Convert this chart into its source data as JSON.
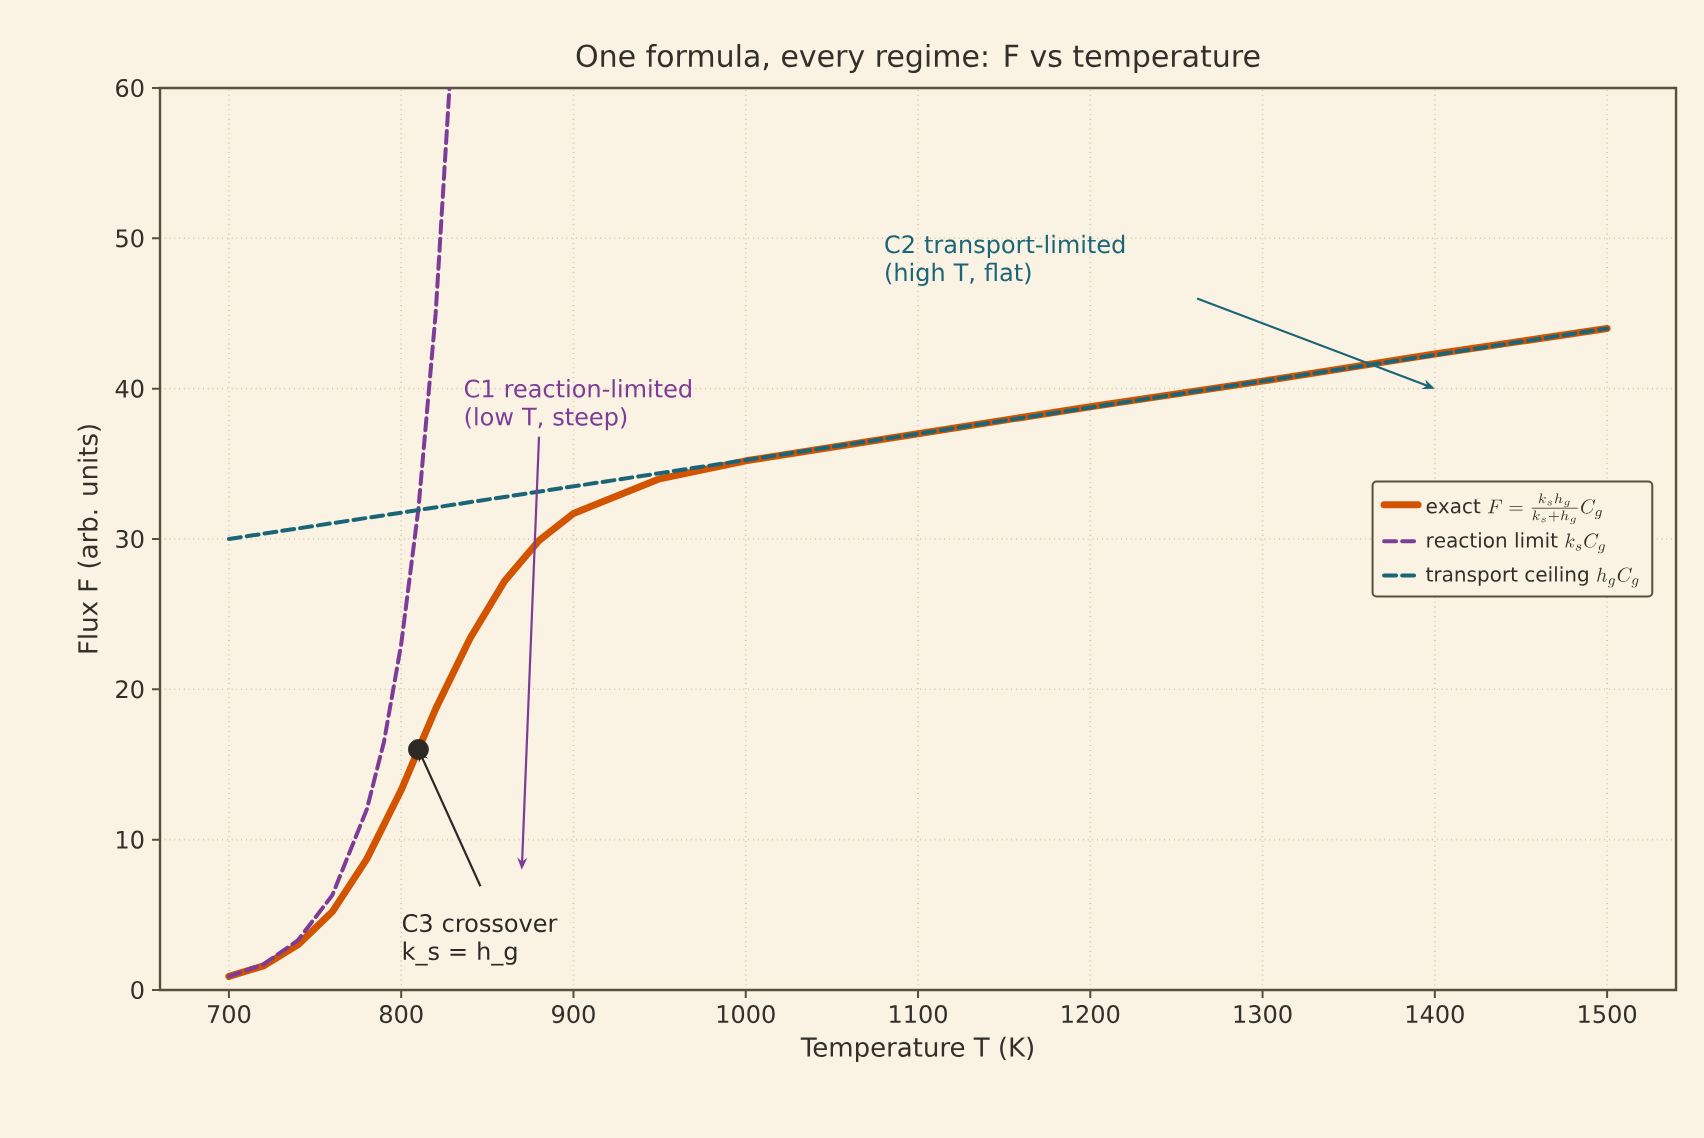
{
  "chart_data": {
    "type": "line",
    "title": "One formula, every regime: F vs temperature",
    "xlabel": "Temperature  T  (K)",
    "ylabel": "Flux  F  (arb. units)",
    "xlim": [
      660,
      1540
    ],
    "ylim": [
      0,
      60
    ],
    "xticks": [
      700,
      800,
      900,
      1000,
      1100,
      1200,
      1300,
      1400,
      1500
    ],
    "yticks": [
      0,
      10,
      20,
      30,
      40,
      50,
      60
    ],
    "grid": true,
    "legend": "right",
    "marker": "none",
    "series": [
      {
        "name": "\\mathrm{exact}\\ F=\\frac{k_sh_g}{k_s+h_g}C_g",
        "color": "#d35400",
        "line_style": "solid",
        "x": [
          700,
          720,
          740,
          760,
          780,
          800,
          810,
          820,
          840,
          860,
          880,
          900,
          950,
          1000,
          1100,
          1200,
          1300,
          1400,
          1500
        ],
        "values": [
          0.9,
          1.6,
          3.0,
          5.2,
          8.7,
          13.3,
          16,
          18.7,
          23.4,
          27.2,
          29.9,
          31.7,
          34.0,
          35.2,
          37.0,
          38.8,
          40.5,
          42.3,
          44.0
        ]
      },
      {
        "name": "\\mathrm{reaction\\ limit}\\ k_sC_g",
        "color": "#7d3c98",
        "line_style": "dashed",
        "x": [
          700,
          720,
          740,
          760,
          780,
          790,
          800,
          810,
          820,
          828
        ],
        "values": [
          0.9,
          1.7,
          3.3,
          6.3,
          12,
          16.5,
          23,
          32,
          45,
          60
        ]
      },
      {
        "name": "\\mathrm{transport\\ ceiling}\\ h_gC_g",
        "color": "#1a6578",
        "line_style": "dashed",
        "x": [
          700,
          1500
        ],
        "values": [
          30,
          44
        ]
      },
      {
        "type": "scatter",
        "marker": "circle",
        "color": "#2d2a26",
        "x": [
          810
        ],
        "values": [
          16
        ]
      }
    ],
    "annotations": [
      "C1 reaction-limited (low T, steep)",
      "C2 transport-limited (high T, flat)",
      {
        "text": "C3 crossover k_s = h_g",
        "x": 810,
        "y": 16
      }
    ]
  }
}
